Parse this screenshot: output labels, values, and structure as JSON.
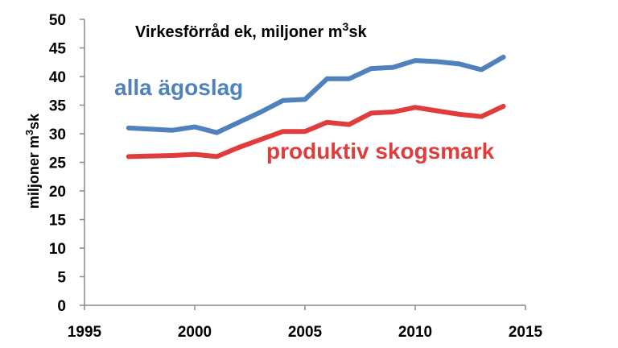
{
  "chart_data": {
    "type": "line",
    "title_main": "Virkesförråd ek, miljoner m",
    "title_sup": "3",
    "title_tail": "sk",
    "ylabel_main": "miljoner m",
    "ylabel_sup": "3",
    "ylabel_tail": "sk",
    "xlabel": "",
    "xlim": [
      1995,
      2015
    ],
    "ylim": [
      0,
      50
    ],
    "x_ticks": [
      "1995",
      "2000",
      "2005",
      "2010",
      "2015"
    ],
    "y_ticks": [
      "0",
      "5",
      "10",
      "15",
      "20",
      "25",
      "30",
      "35",
      "40",
      "45",
      "50"
    ],
    "grid": false,
    "series": [
      {
        "name": "alla ägoslag",
        "color": "#4f81bd",
        "x": [
          1997,
          1999,
          2000,
          2001,
          2002,
          2003,
          2004,
          2005,
          2006,
          2007,
          2008,
          2009,
          2010,
          2011,
          2012,
          2013,
          2014
        ],
        "values": [
          31.0,
          30.6,
          31.2,
          30.2,
          32.0,
          33.8,
          35.8,
          36.0,
          39.6,
          39.6,
          41.4,
          41.6,
          42.8,
          42.6,
          42.2,
          41.2,
          43.4
        ]
      },
      {
        "name": "produktiv skogsmark",
        "color": "#e03c3c",
        "x": [
          1997,
          1999,
          2000,
          2001,
          2002,
          2003,
          2004,
          2005,
          2006,
          2007,
          2008,
          2009,
          2010,
          2011,
          2012,
          2013,
          2014
        ],
        "values": [
          26.0,
          26.2,
          26.4,
          26.0,
          27.6,
          29.0,
          30.4,
          30.4,
          32.0,
          31.6,
          33.6,
          33.8,
          34.6,
          34.0,
          33.4,
          33.0,
          34.8
        ]
      }
    ]
  }
}
